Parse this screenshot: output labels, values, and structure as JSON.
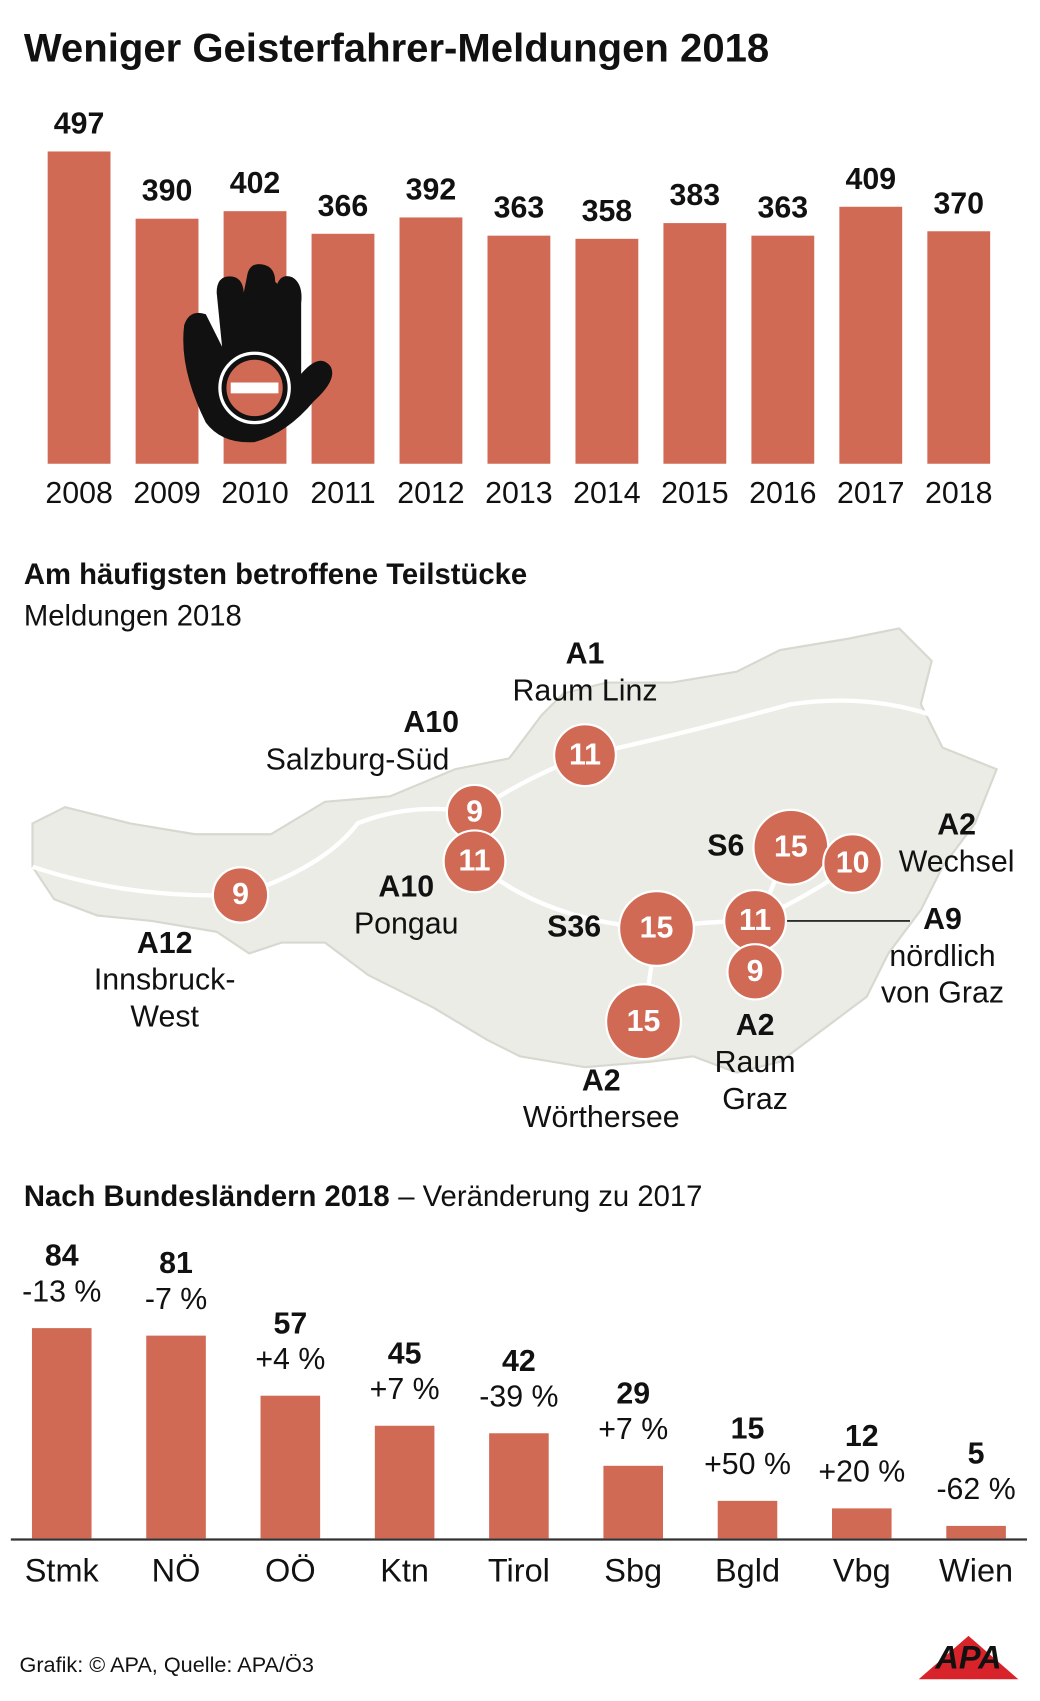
{
  "title": "Weniger Geisterfahrer-Meldungen 2018",
  "chart_data": [
    {
      "type": "bar",
      "categories": [
        "2008",
        "2009",
        "2010",
        "2011",
        "2012",
        "2013",
        "2014",
        "2015",
        "2016",
        "2017",
        "2018"
      ],
      "values": [
        497,
        390,
        402,
        366,
        392,
        363,
        358,
        383,
        363,
        409,
        370
      ],
      "color": "#d16a55",
      "ylim": [
        0,
        500
      ]
    },
    {
      "type": "bar",
      "title": "Nach Bundesländern 2018",
      "subtitle": "– Veränderung zu 2017",
      "categories": [
        "Stmk",
        "NÖ",
        "OÖ",
        "Ktn",
        "Tirol",
        "Sbg",
        "Bgld",
        "Vbg",
        "Wien"
      ],
      "values": [
        84,
        81,
        57,
        45,
        42,
        29,
        15,
        12,
        5
      ],
      "changes": [
        "-13 %",
        "-7 %",
        "+4 %",
        "+7 %",
        "-39 %",
        "+7 %",
        "+50 %",
        "+20 %",
        "-62 %"
      ],
      "color": "#d16a55",
      "ylim": [
        0,
        90
      ]
    }
  ],
  "map": {
    "title": "Am häufigsten betroffene Teilstücke",
    "subtitle": "Meldungen 2018",
    "markers": [
      {
        "road": "A1",
        "place": [
          "Raum Linz"
        ],
        "value": 11
      },
      {
        "road": "A10",
        "place": [
          "Salzburg-Süd"
        ],
        "value": 9
      },
      {
        "road": "A10",
        "place": [
          "Pongau"
        ],
        "value": 11
      },
      {
        "road": "A12",
        "place": [
          "Innsbruck-",
          "West"
        ],
        "value": 9
      },
      {
        "road": "S6",
        "place": [],
        "value": 15
      },
      {
        "road": "A2",
        "place": [
          "Wechsel"
        ],
        "value": 10
      },
      {
        "road": "A9",
        "place": [
          "nördlich",
          "von Graz"
        ],
        "value": 11
      },
      {
        "road": "S36",
        "place": [],
        "value": 15
      },
      {
        "road": "A2",
        "place": [
          "Raum",
          "Graz"
        ],
        "value": 9
      },
      {
        "road": "A2",
        "place": [
          "Wörthersee"
        ],
        "value": 15
      }
    ]
  },
  "footer": {
    "credit": "Grafik: © APA, Quelle: APA/Ö3",
    "logo": "APA"
  }
}
